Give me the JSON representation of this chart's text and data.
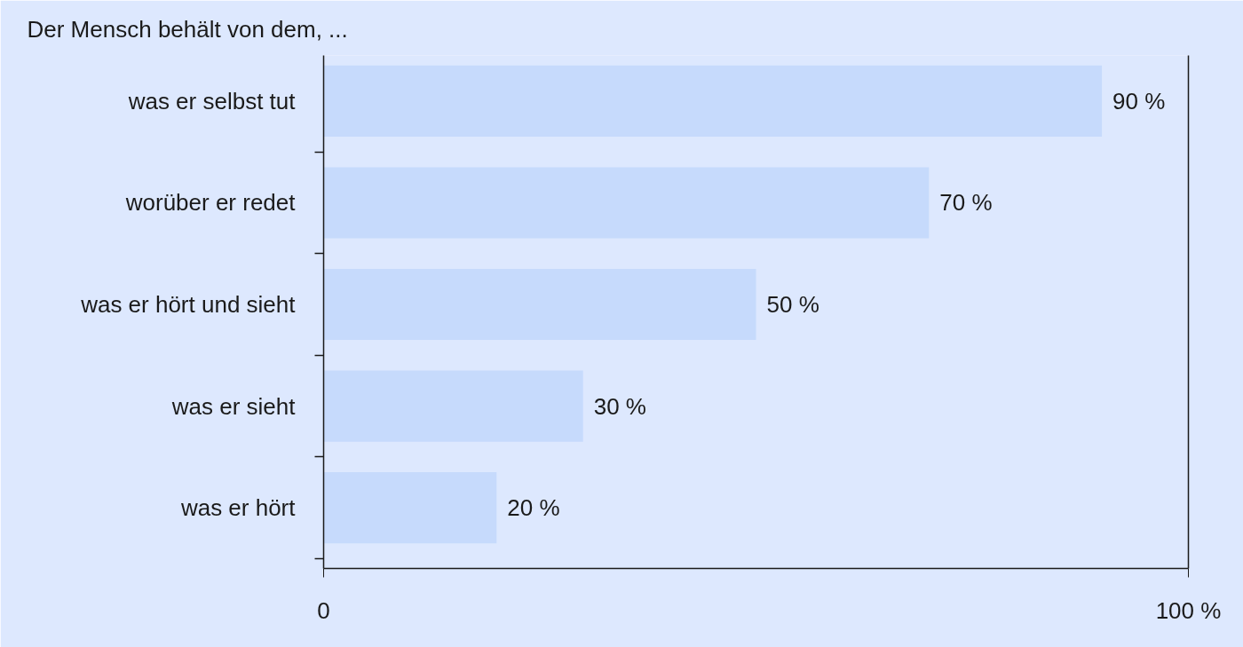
{
  "chart_data": {
    "type": "bar",
    "orientation": "horizontal",
    "title": "Der Mensch behält von dem, ...",
    "categories": [
      "was er selbst tut",
      "worüber er redet",
      "was er hört und sieht",
      "was er sieht",
      "was er hört"
    ],
    "values": [
      90,
      70,
      50,
      30,
      20
    ],
    "value_labels": [
      "90 %",
      "70 %",
      "50 %",
      "30 %",
      "20 %"
    ],
    "color": "#c6dafc",
    "xlim": [
      0,
      100
    ],
    "xticks": [
      0,
      {
        "value": 100,
        "label": "100 %"
      }
    ]
  }
}
